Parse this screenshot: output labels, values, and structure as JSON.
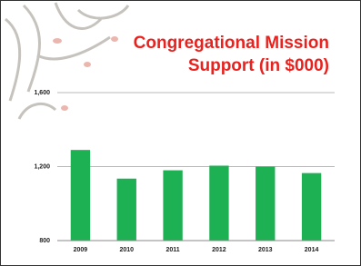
{
  "chart_data": {
    "type": "bar",
    "title": "Congregational Mission Support (in $000)",
    "categories": [
      "2009",
      "2010",
      "2011",
      "2012",
      "2013",
      "2014"
    ],
    "values": [
      1290,
      1135,
      1180,
      1205,
      1200,
      1165
    ],
    "color": "#1db154",
    "ylim": [
      800,
      1600
    ],
    "yticks": [
      800,
      {
        "value": 1200,
        "label": "1,200"
      },
      {
        "value": 1600,
        "label": "1,600"
      }
    ],
    "grid": true
  }
}
